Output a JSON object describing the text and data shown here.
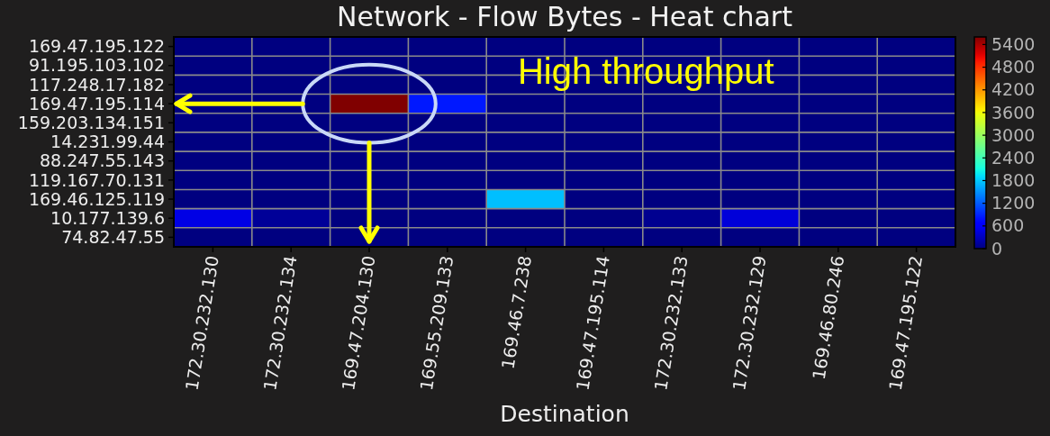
{
  "chart_data": {
    "type": "heatmap",
    "title": "Network - Flow Bytes - Heat chart",
    "xlabel": "Destination",
    "annotations": [
      "High throughput"
    ],
    "categories": [
      "172.30.232.130",
      "172.30.232.134",
      "169.47.204.130",
      "169.55.209.133",
      "169.46.7.238",
      "169.47.195.114",
      "172.30.232.133",
      "172.30.232.129",
      "169.46.80.246",
      "169.47.195.122"
    ],
    "y_categories": [
      "169.47.195.122",
      "91.195.103.102",
      "117.248.17.182",
      "169.47.195.114",
      "159.203.134.151",
      "14.231.99.44",
      "88.247.55.143",
      "119.167.70.131",
      "169.46.125.119",
      "10.177.139.6",
      "74.82.47.55"
    ],
    "cells": [
      [
        0,
        0,
        0,
        0,
        0,
        0,
        0,
        0,
        0,
        0
      ],
      [
        0,
        0,
        0,
        0,
        0,
        0,
        0,
        0,
        0,
        0
      ],
      [
        0,
        0,
        0,
        0,
        0,
        0,
        0,
        0,
        0,
        0
      ],
      [
        0,
        0,
        5600,
        830,
        0,
        0,
        0,
        0,
        0,
        0
      ],
      [
        0,
        0,
        0,
        0,
        0,
        0,
        0,
        0,
        0,
        0
      ],
      [
        0,
        0,
        0,
        0,
        0,
        0,
        0,
        0,
        0,
        0
      ],
      [
        0,
        0,
        0,
        0,
        0,
        0,
        0,
        0,
        0,
        0
      ],
      [
        0,
        0,
        0,
        0,
        0,
        0,
        0,
        0,
        0,
        0
      ],
      [
        0,
        0,
        0,
        0,
        1750,
        0,
        0,
        0,
        0,
        0
      ],
      [
        490,
        120,
        0,
        0,
        0,
        0,
        80,
        430,
        0,
        0
      ],
      [
        0,
        0,
        0,
        0,
        0,
        0,
        0,
        0,
        0,
        0
      ]
    ],
    "clim": [
      0,
      5600
    ],
    "cticks": [
      0,
      600,
      1200,
      1800,
      2400,
      3000,
      3600,
      4200,
      4800,
      5400
    ],
    "grid": true
  }
}
